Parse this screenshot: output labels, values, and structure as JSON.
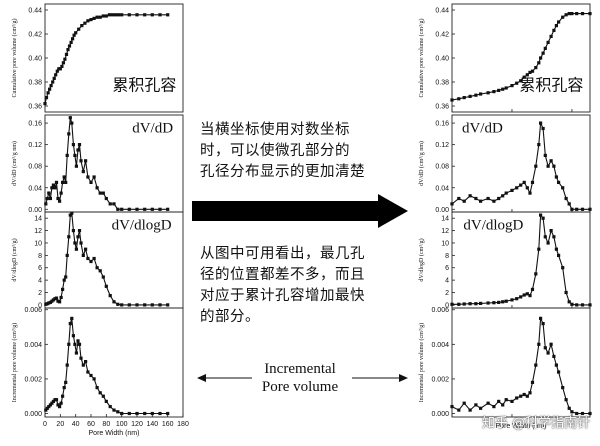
{
  "middle": {
    "text1": [
      "当横坐标使用对数坐标",
      "时，可以使微孔部分的",
      "孔径分布显示的更加清楚"
    ],
    "text2": [
      "从图中可用看出，最几孔",
      "径的位置都差不多，而且",
      "对应于累计孔容增加最快",
      "的部分。"
    ],
    "incremental_label": [
      "Incremental",
      "Pore volume"
    ]
  },
  "watermark": "知乎 @科学指南针",
  "colors": {
    "line": "#111111",
    "arrow": "#000000"
  },
  "chart_data": [
    {
      "type": "line",
      "panel": "left-cumulative",
      "annotation": "累积孔容",
      "ylabel": "Cumulative pore volume (cm³/g)",
      "yticks": [
        "0.36",
        "0.38",
        "0.40",
        "0.42",
        "0.44"
      ],
      "ylim": [
        0.355,
        0.445
      ],
      "xlim": [
        0,
        180
      ],
      "xscale": "linear",
      "x": [
        0,
        2,
        4,
        6,
        8,
        10,
        12,
        14,
        16,
        18,
        20,
        22,
        24,
        26,
        28,
        30,
        32,
        34,
        36,
        38,
        40,
        44,
        48,
        52,
        56,
        60,
        64,
        68,
        72,
        76,
        80,
        84,
        88,
        92,
        96,
        100,
        110,
        120,
        130,
        140,
        150,
        160
      ],
      "y": [
        0.362,
        0.367,
        0.371,
        0.374,
        0.377,
        0.38,
        0.383,
        0.386,
        0.389,
        0.391,
        0.391,
        0.393,
        0.396,
        0.399,
        0.403,
        0.407,
        0.41,
        0.413,
        0.416,
        0.419,
        0.421,
        0.424,
        0.427,
        0.429,
        0.431,
        0.432,
        0.433,
        0.434,
        0.434,
        0.435,
        0.435,
        0.436,
        0.436,
        0.436,
        0.436,
        0.436,
        0.436,
        0.436,
        0.436,
        0.436,
        0.436,
        0.436
      ]
    },
    {
      "type": "line",
      "panel": "left-dvdd",
      "annotation": "dV/dD",
      "ylabel": "dV/dD (cm³/g nm)",
      "yticks": [
        "0.00",
        "0.04",
        "0.08",
        "0.12",
        "0.16"
      ],
      "ylim": [
        -0.005,
        0.175
      ],
      "xlim": [
        0,
        180
      ],
      "xscale": "linear",
      "x": [
        1,
        3,
        5,
        7,
        9,
        11,
        13,
        15,
        17,
        19,
        21,
        23,
        25,
        27,
        29,
        31,
        33,
        35,
        37,
        39,
        41,
        43,
        45,
        47,
        50,
        53,
        56,
        60,
        64,
        68,
        72,
        76,
        80,
        85,
        90,
        95,
        100,
        110,
        120,
        130,
        140,
        150,
        160
      ],
      "y": [
        0.01,
        0.02,
        0.03,
        0.02,
        0.04,
        0.045,
        0.04,
        0.05,
        0.02,
        0.015,
        0.03,
        0.05,
        0.06,
        0.05,
        0.1,
        0.14,
        0.17,
        0.16,
        0.12,
        0.1,
        0.08,
        0.11,
        0.12,
        0.09,
        0.07,
        0.09,
        0.06,
        0.05,
        0.06,
        0.04,
        0.03,
        0.03,
        0.02,
        0.01,
        0.01,
        0.0,
        0.0,
        0.0,
        0.0,
        0.0,
        0.0,
        0.0,
        0.0
      ]
    },
    {
      "type": "line",
      "panel": "left-dvdlogd",
      "annotation": "dV/dlogD",
      "ylabel": "dV/dlogD (cm³/g)",
      "yticks": [
        "0",
        "2",
        "4",
        "6",
        "8",
        "10",
        "12",
        "14"
      ],
      "ylim": [
        -0.5,
        15
      ],
      "xlim": [
        0,
        180
      ],
      "xscale": "linear",
      "x": [
        1,
        3,
        5,
        7,
        9,
        11,
        13,
        15,
        17,
        19,
        21,
        23,
        25,
        27,
        29,
        31,
        33,
        35,
        37,
        39,
        41,
        43,
        45,
        47,
        50,
        53,
        56,
        60,
        64,
        68,
        72,
        76,
        80,
        85,
        90,
        95,
        100,
        110,
        120,
        130,
        140,
        150,
        160
      ],
      "y": [
        0.1,
        0.2,
        0.3,
        0.4,
        0.6,
        0.8,
        1.0,
        1.1,
        0.6,
        0.5,
        1.2,
        2.5,
        4.0,
        4.5,
        8.0,
        11.0,
        14.5,
        14.8,
        12.0,
        10.0,
        9.0,
        11.0,
        12.0,
        10.0,
        8.0,
        9.0,
        7.5,
        7.0,
        7.5,
        6.0,
        5.5,
        4.5,
        3.0,
        1.5,
        0.5,
        0.1,
        0.0,
        0.0,
        0.0,
        0.0,
        0.0,
        0.0,
        0.0
      ]
    },
    {
      "type": "line",
      "panel": "left-incremental",
      "ylabel": "Incremental pore volume (cm³/g)",
      "yticks": [
        "0.000",
        "0.002",
        "0.004",
        "0.006"
      ],
      "ylim": [
        -0.0002,
        0.0061
      ],
      "xlim": [
        0,
        180
      ],
      "xscale": "linear",
      "xlabel": "Pore Width (nm)",
      "xticks": [
        "0",
        "20",
        "40",
        "60",
        "80",
        "100",
        "120",
        "140",
        "160",
        "180"
      ],
      "x": [
        1,
        3,
        5,
        7,
        9,
        11,
        13,
        15,
        17,
        19,
        21,
        23,
        25,
        27,
        29,
        31,
        33,
        35,
        37,
        39,
        41,
        43,
        45,
        47,
        50,
        53,
        56,
        60,
        64,
        68,
        72,
        76,
        80,
        85,
        90,
        95,
        100,
        110,
        120,
        130,
        140,
        150,
        160
      ],
      "y": [
        0.0002,
        0.0003,
        0.0004,
        0.0005,
        0.0006,
        0.0007,
        0.0008,
        0.0008,
        0.0005,
        0.0004,
        0.0006,
        0.001,
        0.0015,
        0.0018,
        0.0028,
        0.004,
        0.0052,
        0.0055,
        0.0045,
        0.004,
        0.0035,
        0.0042,
        0.004,
        0.0032,
        0.0028,
        0.003,
        0.0024,
        0.0022,
        0.002,
        0.0015,
        0.0012,
        0.001,
        0.0007,
        0.0004,
        0.0002,
        0.0001,
        0.0,
        0.0,
        0.0,
        0.0,
        0.0,
        0.0,
        0.0
      ]
    },
    {
      "type": "line",
      "panel": "right-cumulative",
      "annotation": "累积孔容",
      "ylabel": "Cumulative pore volume (cm³/g)",
      "yticks": [
        "0.36",
        "0.38",
        "0.40",
        "0.42",
        "0.44"
      ],
      "ylim": [
        0.355,
        0.445
      ],
      "xlim": [
        1,
        200
      ],
      "xscale": "log",
      "x": [
        1,
        1.3,
        1.6,
        2,
        2.5,
        3,
        4,
        5,
        6,
        7,
        8,
        10,
        12,
        14,
        16,
        18,
        20,
        22,
        25,
        28,
        30,
        33,
        36,
        40,
        45,
        50,
        55,
        60,
        70,
        80,
        90,
        100,
        120,
        150,
        200
      ],
      "y": [
        0.365,
        0.366,
        0.367,
        0.368,
        0.369,
        0.37,
        0.371,
        0.372,
        0.373,
        0.374,
        0.375,
        0.377,
        0.379,
        0.381,
        0.384,
        0.386,
        0.388,
        0.389,
        0.392,
        0.396,
        0.4,
        0.404,
        0.408,
        0.413,
        0.418,
        0.423,
        0.427,
        0.43,
        0.434,
        0.436,
        0.437,
        0.437,
        0.437,
        0.437,
        0.437
      ]
    },
    {
      "type": "line",
      "panel": "right-dvdd",
      "annotation": "dV/dD",
      "ylabel": "dV/dD (cm³/g nm)",
      "yticks": [
        "0.00",
        "0.04",
        "0.08",
        "0.12",
        "0.16"
      ],
      "ylim": [
        -0.005,
        0.175
      ],
      "xlim": [
        1,
        200
      ],
      "xscale": "log",
      "x": [
        1,
        1.3,
        1.6,
        2,
        2.5,
        3,
        4,
        5,
        6,
        7,
        8,
        10,
        12,
        14,
        16,
        18,
        20,
        22,
        25,
        28,
        30,
        33,
        36,
        40,
        45,
        50,
        55,
        60,
        70,
        80,
        90,
        100,
        120,
        150,
        200
      ],
      "y": [
        0.01,
        0.02,
        0.015,
        0.025,
        0.02,
        0.015,
        0.02,
        0.015,
        0.02,
        0.025,
        0.03,
        0.035,
        0.04,
        0.045,
        0.05,
        0.04,
        0.03,
        0.05,
        0.08,
        0.12,
        0.16,
        0.15,
        0.1,
        0.08,
        0.09,
        0.08,
        0.06,
        0.05,
        0.04,
        0.02,
        0.01,
        0.0,
        0.0,
        0.0,
        0.0
      ]
    },
    {
      "type": "line",
      "panel": "right-dvdlogd",
      "annotation": "dV/dlogD",
      "ylabel": "dV/dlogD (cm³/g)",
      "yticks": [
        "0",
        "2",
        "4",
        "6",
        "8",
        "10",
        "12",
        "14"
      ],
      "ylim": [
        -0.5,
        15
      ],
      "xlim": [
        1,
        200
      ],
      "xscale": "log",
      "x": [
        1,
        1.3,
        1.6,
        2,
        2.5,
        3,
        4,
        5,
        6,
        7,
        8,
        10,
        12,
        14,
        16,
        18,
        20,
        22,
        25,
        28,
        30,
        33,
        36,
        40,
        45,
        50,
        55,
        60,
        70,
        80,
        90,
        100,
        120,
        150,
        200
      ],
      "y": [
        0.1,
        0.1,
        0.15,
        0.2,
        0.2,
        0.25,
        0.3,
        0.35,
        0.4,
        0.5,
        0.6,
        0.8,
        1.0,
        1.3,
        1.6,
        1.8,
        1.5,
        2.5,
        5.0,
        9.0,
        14.5,
        14.0,
        11.0,
        10.0,
        12.0,
        11.0,
        9.0,
        8.0,
        6.0,
        2.0,
        0.5,
        0.1,
        0.0,
        0.0,
        0.0
      ]
    },
    {
      "type": "line",
      "panel": "right-incremental",
      "ylabel": "Incremental pore volume (cm³/g)",
      "yticks": [
        "0.000",
        "0.002",
        "0.004",
        "0.006"
      ],
      "ylim": [
        -0.0002,
        0.0061
      ],
      "xlim": [
        1,
        200
      ],
      "xscale": "log",
      "xlabel": "Pore Width (nm)",
      "x": [
        1,
        1.3,
        1.6,
        2,
        2.5,
        3,
        4,
        5,
        6,
        7,
        8,
        10,
        12,
        14,
        16,
        18,
        20,
        22,
        25,
        28,
        30,
        33,
        36,
        40,
        45,
        50,
        55,
        60,
        70,
        80,
        90,
        100,
        120,
        150,
        200
      ],
      "y": [
        0.0004,
        0.0002,
        0.0006,
        0.0002,
        0.0005,
        0.0003,
        0.0006,
        0.0004,
        0.0007,
        0.0005,
        0.0008,
        0.0007,
        0.0009,
        0.001,
        0.0011,
        0.001,
        0.0012,
        0.0018,
        0.0028,
        0.004,
        0.0055,
        0.0052,
        0.0038,
        0.0035,
        0.004,
        0.0033,
        0.0028,
        0.0024,
        0.0015,
        0.0008,
        0.0003,
        0.0001,
        0.0,
        0.0,
        0.0
      ]
    }
  ]
}
